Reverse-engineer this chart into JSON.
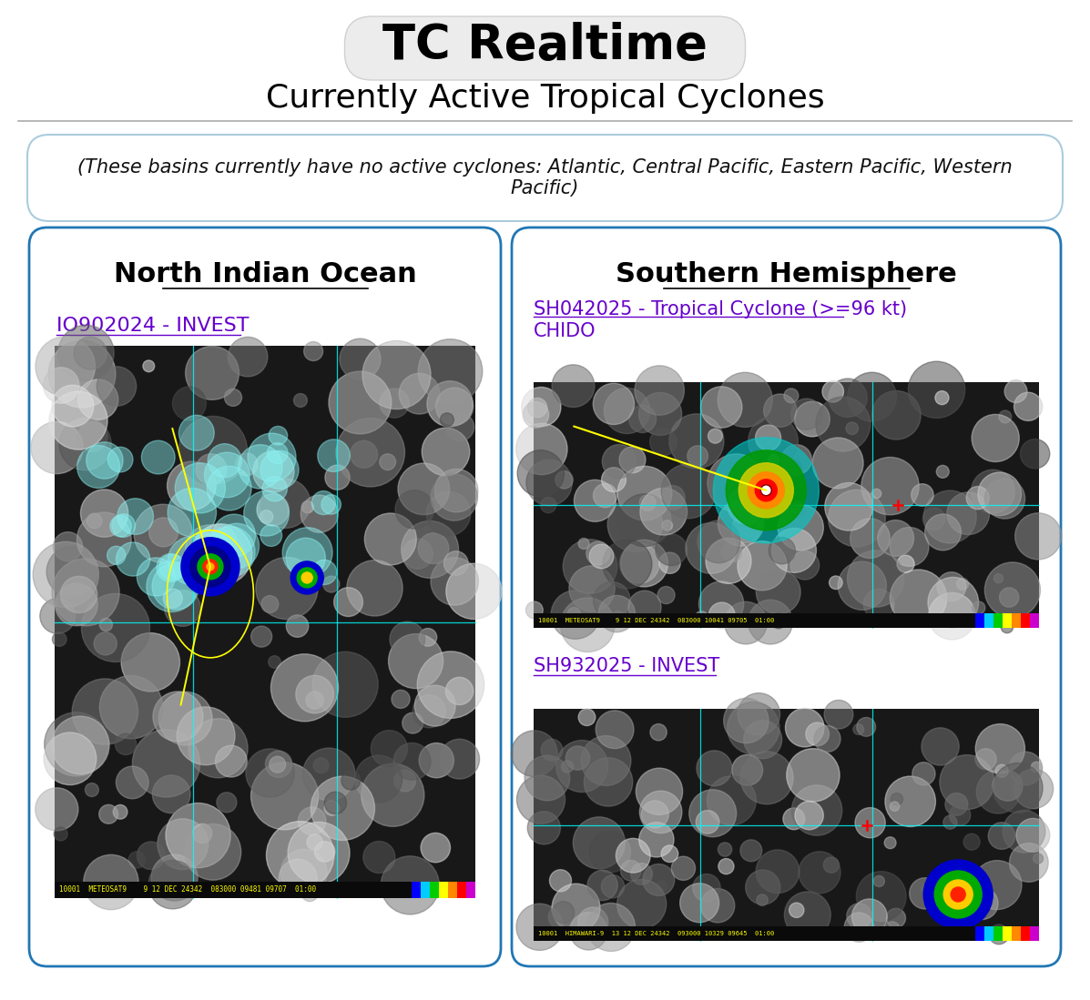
{
  "title": "TC Realtime",
  "subtitle": "Currently Active Tropical Cyclones",
  "inactive_basins_text": "(These basins currently have no active cyclones: Atlantic, Central Pacific, Eastern Pacific, Western\nPacific)",
  "left_panel_title": "North Indian Ocean",
  "right_panel_title": "Southern Hemisphere",
  "left_link": "IO902024 - INVEST",
  "right_link1_line1": "SH042025 - Tropical Cyclone (>=96 kt)",
  "right_link1_line2": "CHIDO",
  "right_link2": "SH932025 - INVEST",
  "title_bg": "#ececec",
  "title_fg": "#000000",
  "panel_border": "#2077b4",
  "inactive_border": "#aaccdd",
  "link_color": "#6600cc",
  "background": "#ffffff",
  "footer_text1": "10001  METEOSAT9    9 12 DEC 24342  083000 09481 09707  01:00",
  "footer_text2": "10001  METEOSAT9    9 12 DEC 24342  083000 10041 09705  01:00",
  "footer_text3": "10001  HIMAWARI-9  13 12 DEC 24342  093000 10329 09645  01:00"
}
